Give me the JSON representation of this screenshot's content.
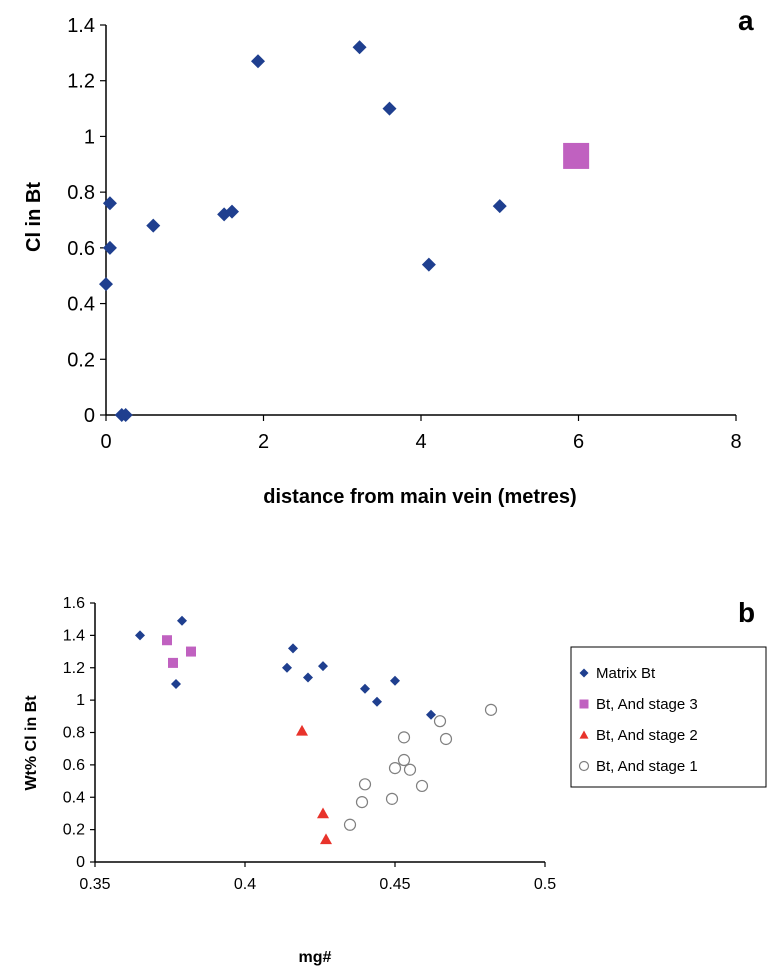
{
  "chart_data": [
    {
      "type": "scatter",
      "panel_label": "a",
      "xlabel": "distance from main vein (metres)",
      "ylabel": "Cl in Bt",
      "xlim": [
        0,
        8
      ],
      "ylim": [
        0,
        1.4
      ],
      "xticks": [
        0,
        2,
        4,
        6,
        8
      ],
      "yticks": [
        0,
        0.2,
        0.4,
        0.6,
        0.8,
        1,
        1.2,
        1.4
      ],
      "grid": false,
      "series": [
        {
          "marker": "diamond",
          "color": "#1f3f8f",
          "points": [
            {
              "x": 0.0,
              "y": 0.47
            },
            {
              "x": 0.05,
              "y": 0.6
            },
            {
              "x": 0.05,
              "y": 0.76
            },
            {
              "x": 0.6,
              "y": 0.68
            },
            {
              "x": 0.2,
              "y": 0.0
            },
            {
              "x": 0.25,
              "y": 0.0
            },
            {
              "x": 1.5,
              "y": 0.72
            },
            {
              "x": 1.6,
              "y": 0.73
            },
            {
              "x": 1.93,
              "y": 1.27
            },
            {
              "x": 3.22,
              "y": 1.32
            },
            {
              "x": 3.6,
              "y": 1.1
            },
            {
              "x": 4.1,
              "y": 0.54
            },
            {
              "x": 5.0,
              "y": 0.75
            }
          ]
        },
        {
          "marker": "square",
          "color": "#c061c0",
          "points": [
            {
              "x": 5.97,
              "y": 0.93
            }
          ]
        }
      ]
    },
    {
      "type": "scatter",
      "panel_label": "b",
      "xlabel": "mg#",
      "ylabel": "Wt% Cl in Bt",
      "xlim": [
        0.35,
        0.5
      ],
      "ylim": [
        0,
        1.6
      ],
      "xticks": [
        "0.35",
        "0.4",
        "0.45",
        "0.5"
      ],
      "yticks": [
        "0",
        "0.2",
        "0.4",
        "0.6",
        "0.8",
        "1",
        "1.2",
        "1.4",
        "1.6"
      ],
      "grid": false,
      "legend_position": "right",
      "series": [
        {
          "name": "Matrix Bt",
          "marker": "diamond",
          "color": "#1f3f8f",
          "points": [
            {
              "x": 0.365,
              "y": 1.4
            },
            {
              "x": 0.379,
              "y": 1.49
            },
            {
              "x": 0.377,
              "y": 1.1
            },
            {
              "x": 0.414,
              "y": 1.2
            },
            {
              "x": 0.416,
              "y": 1.32
            },
            {
              "x": 0.421,
              "y": 1.14
            },
            {
              "x": 0.426,
              "y": 1.21
            },
            {
              "x": 0.44,
              "y": 1.07
            },
            {
              "x": 0.444,
              "y": 0.99
            },
            {
              "x": 0.45,
              "y": 1.12
            },
            {
              "x": 0.462,
              "y": 0.91
            }
          ]
        },
        {
          "name": "Bt, And stage 3",
          "marker": "square",
          "color": "#c061c0",
          "points": [
            {
              "x": 0.374,
              "y": 1.37
            },
            {
              "x": 0.376,
              "y": 1.23
            },
            {
              "x": 0.382,
              "y": 1.3
            }
          ]
        },
        {
          "name": "Bt, And stage 2",
          "marker": "triangle",
          "color": "#e8332b",
          "points": [
            {
              "x": 0.419,
              "y": 0.81
            },
            {
              "x": 0.426,
              "y": 0.3
            },
            {
              "x": 0.427,
              "y": 0.14
            }
          ]
        },
        {
          "name": "Bt, And stage 1",
          "marker": "open-circle",
          "color": "#7f7f7f",
          "points": [
            {
              "x": 0.435,
              "y": 0.23
            },
            {
              "x": 0.439,
              "y": 0.37
            },
            {
              "x": 0.44,
              "y": 0.48
            },
            {
              "x": 0.449,
              "y": 0.39
            },
            {
              "x": 0.45,
              "y": 0.58
            },
            {
              "x": 0.453,
              "y": 0.77
            },
            {
              "x": 0.453,
              "y": 0.63
            },
            {
              "x": 0.455,
              "y": 0.57
            },
            {
              "x": 0.459,
              "y": 0.47
            },
            {
              "x": 0.465,
              "y": 0.87
            },
            {
              "x": 0.467,
              "y": 0.76
            },
            {
              "x": 0.482,
              "y": 0.94
            }
          ]
        }
      ]
    }
  ]
}
